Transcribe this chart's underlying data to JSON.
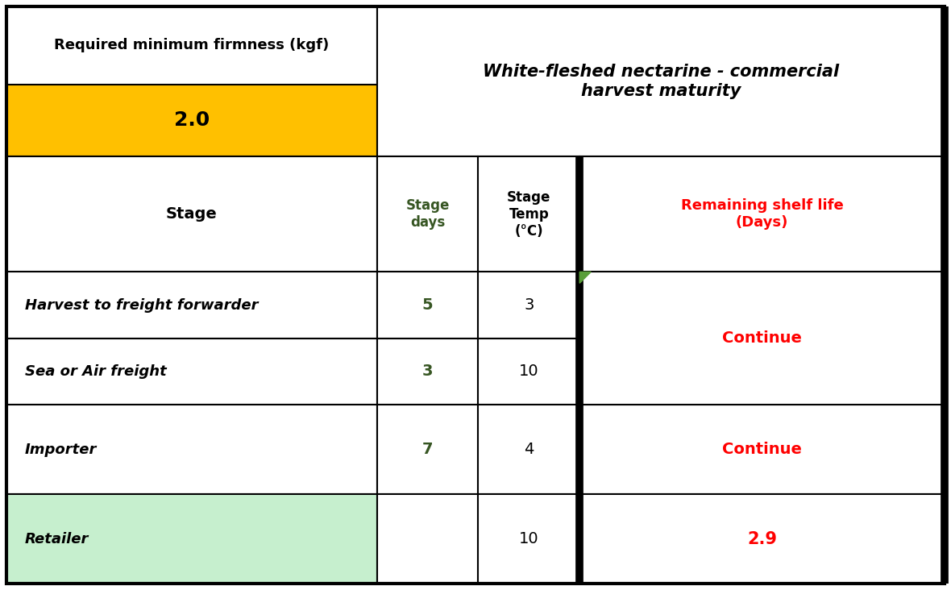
{
  "header_left_top": "Required minimum firmness (kgf)",
  "header_right": "White-fleshed nectarine - commercial\nharvest maturity",
  "firmness_value": "2.0",
  "col_stage_header": "Stage",
  "col_days_header": "Stage\ndays",
  "col_temp_header": "Stage\nTemp\n(°C)",
  "col_shelf_header": "Remaining shelf life\n(Days)",
  "rows": [
    {
      "stage": "Harvest to freight forwarder",
      "days": "5",
      "temp": "3",
      "shelf_life": null
    },
    {
      "stage": "Sea or Air freight",
      "days": "3",
      "temp": "10",
      "shelf_life": null
    },
    {
      "stage": "Importer",
      "days": "7",
      "temp": "4",
      "shelf_life": "Continue"
    },
    {
      "stage": "Retailer",
      "days": "",
      "temp": "10",
      "shelf_life": "2.9"
    }
  ],
  "merged_shelf_life_text": "Continue",
  "colors": {
    "orange": "#FFC000",
    "green_light": "#5A9E3A",
    "green_cell": "#C6EFCE",
    "green_text": "#375623",
    "red_text": "#FF0000",
    "black": "#000000",
    "white": "#FFFFFF"
  },
  "figsize": [
    11.8,
    7.32
  ],
  "dpi": 100
}
